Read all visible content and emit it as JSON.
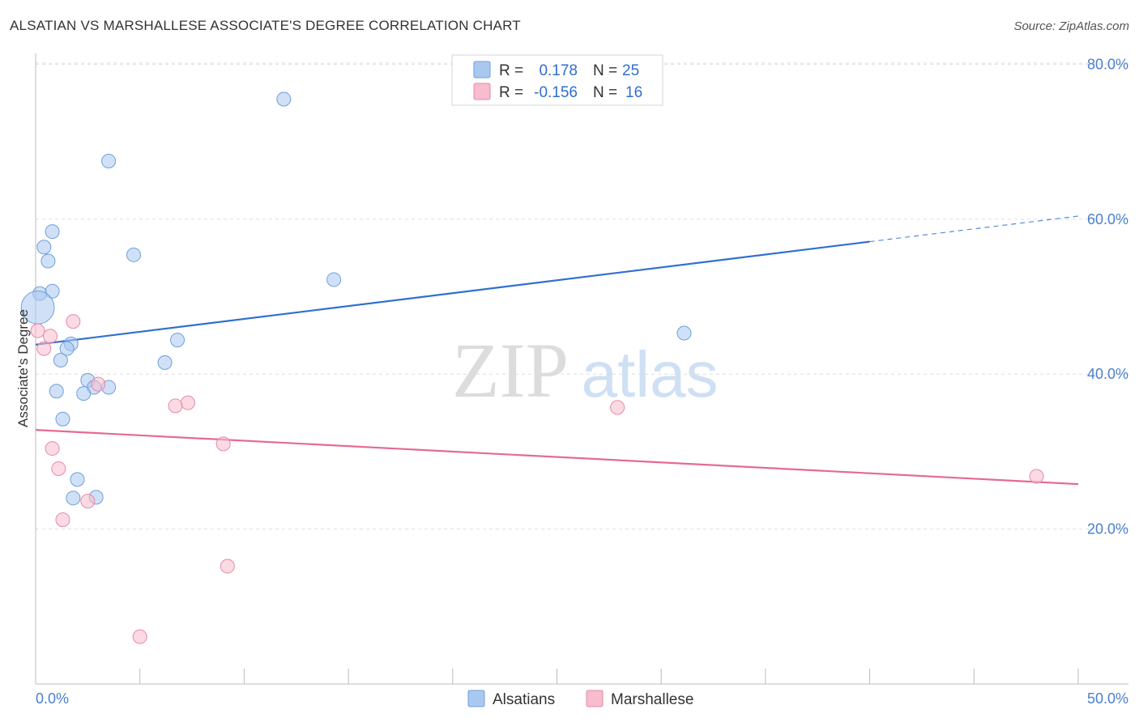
{
  "header": {
    "title": "ALSATIAN VS MARSHALLESE ASSOCIATE'S DEGREE CORRELATION CHART",
    "source": "Source: ZipAtlas.com"
  },
  "chart_data": {
    "type": "scatter",
    "title": "ALSATIAN VS MARSHALLESE ASSOCIATE'S DEGREE CORRELATION CHART",
    "xlabel": "",
    "ylabel": "Associate's Degree",
    "xlim": [
      0,
      50
    ],
    "ylim": [
      0,
      82
    ],
    "x_tick_labels": [
      "0.0%",
      "50.0%"
    ],
    "y_ticks": [
      20,
      40,
      60,
      80
    ],
    "y_tick_labels": [
      "20.0%",
      "40.0%",
      "60.0%",
      "80.0%"
    ],
    "grid": true,
    "watermark": {
      "part1": "ZIP",
      "part2": "atlas"
    },
    "legend_stats": [
      {
        "r_label": "R =",
        "r_value": "0.178",
        "n_label": "N =",
        "n_value": "25"
      },
      {
        "r_label": "R =",
        "r_value": "-0.156",
        "n_label": "N =",
        "n_value": "16"
      }
    ],
    "series": [
      {
        "name": "Alsatians",
        "color": "#a9c8f0",
        "stroke": "#6f9fdc",
        "line_color": "#2f6fd0",
        "trend": {
          "x0": 0,
          "y0": 43.8,
          "x1": 40,
          "y1": 57.1,
          "dash_to_x": 50,
          "dash_to_y": 60.4
        },
        "points": [
          [
            11.9,
            75.5
          ],
          [
            3.5,
            67.5
          ],
          [
            0.8,
            58.4
          ],
          [
            0.4,
            56.4
          ],
          [
            0.6,
            54.6
          ],
          [
            4.7,
            55.4
          ],
          [
            14.3,
            52.2
          ],
          [
            0.2,
            50.4
          ],
          [
            0.8,
            50.7
          ],
          [
            0.1,
            48.6
          ],
          [
            1.7,
            43.9
          ],
          [
            1.5,
            43.3
          ],
          [
            6.8,
            44.4
          ],
          [
            1.2,
            41.8
          ],
          [
            6.2,
            41.5
          ],
          [
            2.5,
            39.2
          ],
          [
            2.8,
            38.3
          ],
          [
            3.5,
            38.3
          ],
          [
            1.0,
            37.8
          ],
          [
            2.3,
            37.5
          ],
          [
            1.3,
            34.2
          ],
          [
            31.1,
            45.3
          ],
          [
            2.0,
            26.4
          ],
          [
            1.8,
            24.0
          ],
          [
            2.9,
            24.1
          ]
        ],
        "sizes": [
          1,
          1,
          1,
          1,
          1,
          1,
          1,
          1,
          1,
          2.4,
          1,
          1,
          1,
          1,
          1,
          1,
          1,
          1,
          1,
          1,
          1,
          1,
          1,
          1,
          1
        ]
      },
      {
        "name": "Marshallese",
        "color": "#f7bccd",
        "stroke": "#e68aa6",
        "line_color": "#e46a94",
        "trend": {
          "x0": 0,
          "y0": 32.8,
          "x1": 50,
          "y1": 25.8
        },
        "points": [
          [
            1.8,
            46.8
          ],
          [
            0.1,
            45.6
          ],
          [
            0.7,
            44.9
          ],
          [
            0.4,
            43.3
          ],
          [
            3.0,
            38.7
          ],
          [
            7.3,
            36.3
          ],
          [
            6.7,
            35.9
          ],
          [
            27.9,
            35.7
          ],
          [
            9.0,
            31.0
          ],
          [
            0.8,
            30.4
          ],
          [
            1.1,
            27.8
          ],
          [
            48.0,
            26.8
          ],
          [
            2.5,
            23.6
          ],
          [
            1.3,
            21.2
          ],
          [
            9.2,
            15.2
          ],
          [
            5.0,
            6.1
          ]
        ],
        "sizes": [
          1,
          1,
          1,
          1,
          1,
          1,
          1,
          1,
          1,
          1,
          1,
          1,
          1,
          1,
          1,
          1
        ]
      }
    ]
  }
}
